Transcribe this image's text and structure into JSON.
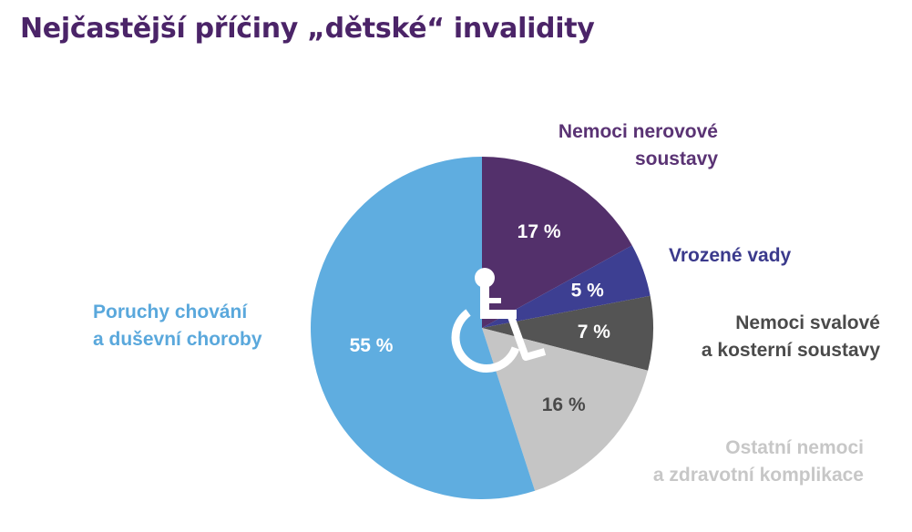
{
  "title": "Nejčastější příčiny „dětské“ invalidity",
  "chart_data": {
    "type": "pie",
    "title": "Nejčastější příčiny „dětské“ invalidity",
    "start": "12 o'clock, clockwise",
    "slices": [
      {
        "label_lines": [
          "Nemoci nerovové",
          "soustavy"
        ],
        "value": 17,
        "display": "17 %",
        "color": "#53306b",
        "value_text_color": "#ffffff"
      },
      {
        "label_lines": [
          "Vrozené vady"
        ],
        "value": 5,
        "display": "5 %",
        "color": "#3d3f92",
        "value_text_color": "#ffffff"
      },
      {
        "label_lines": [
          "Nemoci svalové",
          "a kosterní soustavy"
        ],
        "value": 7,
        "display": "7 %",
        "color": "#545454",
        "value_text_color": "#ffffff"
      },
      {
        "label_lines": [
          "Ostatní nemoci",
          "a zdravotní komplikace"
        ],
        "value": 16,
        "display": "16 %",
        "color": "#c5c5c5",
        "value_text_color": "#4a4a4a"
      },
      {
        "label_lines": [
          "Poruchy chování",
          "a duševní choroby"
        ],
        "value": 55,
        "display": "55 %",
        "color": "#5fade0",
        "value_text_color": "#ffffff"
      }
    ],
    "center_icon": "wheelchair-icon"
  }
}
